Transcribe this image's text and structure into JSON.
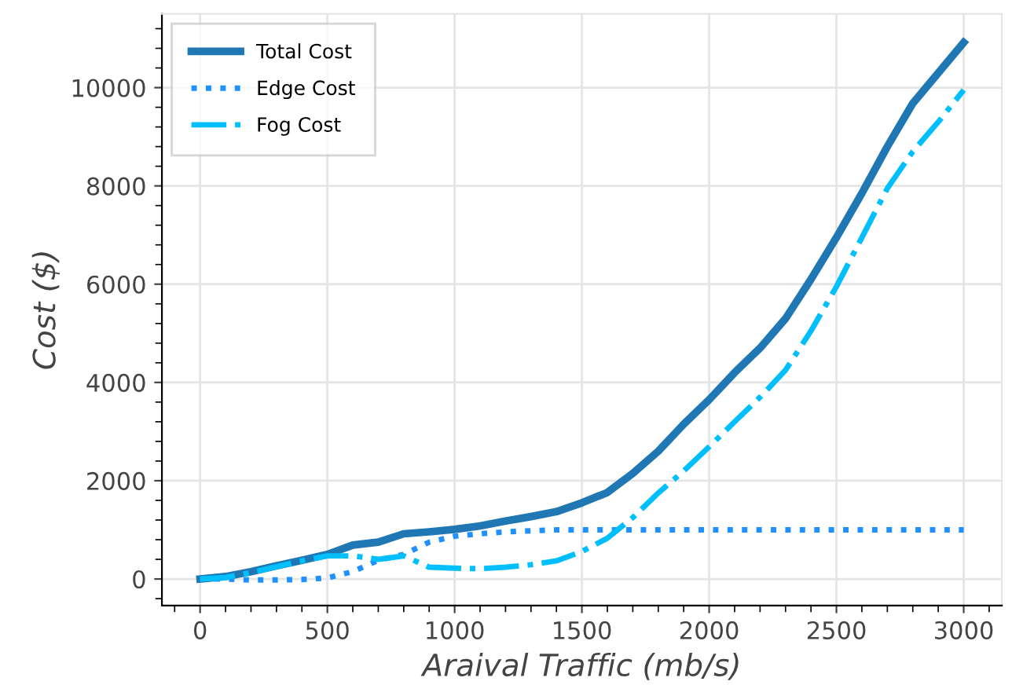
{
  "chart_data": {
    "type": "line",
    "xlabel": "Araival Traffic (mb/s)",
    "ylabel": "Cost ($)",
    "x": [
      0,
      100,
      200,
      300,
      400,
      500,
      600,
      700,
      800,
      900,
      1000,
      1100,
      1200,
      1300,
      1400,
      1500,
      1600,
      1700,
      1800,
      1900,
      2000,
      2100,
      2200,
      2300,
      2400,
      2500,
      2600,
      2700,
      2800,
      2900,
      3000
    ],
    "series": [
      {
        "name": "Total Cost",
        "color": "#1f77b4",
        "line_style": "solid",
        "values": [
          0,
          50,
          150,
          270,
          380,
          500,
          690,
          750,
          920,
          960,
          1010,
          1080,
          1180,
          1270,
          1370,
          1550,
          1760,
          2150,
          2600,
          3150,
          3650,
          4200,
          4700,
          5300,
          6100,
          6950,
          7850,
          8800,
          9680,
          10300,
          10920
        ]
      },
      {
        "name": "Edge Cost",
        "color": "#1e90ff",
        "line_style": "dotted",
        "values": [
          0,
          0,
          -20,
          -20,
          -10,
          20,
          150,
          380,
          500,
          750,
          870,
          920,
          960,
          980,
          1000,
          1000,
          1000,
          1000,
          1000,
          1000,
          1000,
          1000,
          1000,
          1000,
          1000,
          1000,
          1000,
          1000,
          1000,
          1000,
          1000
        ]
      },
      {
        "name": "Fog Cost",
        "color": "#00bfff",
        "line_style": "dashdot",
        "values": [
          0,
          30,
          130,
          250,
          370,
          470,
          470,
          400,
          470,
          240,
          220,
          210,
          240,
          290,
          370,
          560,
          830,
          1250,
          1750,
          2200,
          2690,
          3200,
          3700,
          4250,
          5050,
          5950,
          6950,
          7950,
          8700,
          9300,
          9950
        ]
      }
    ],
    "xlim": [
      -150,
      3150
    ],
    "ylim": [
      -540,
      11500
    ],
    "xticks": [
      0,
      500,
      1000,
      1500,
      2000,
      2500,
      3000
    ],
    "yticks": [
      0,
      2000,
      4000,
      6000,
      8000,
      10000
    ],
    "grid": true,
    "legend": "top left"
  }
}
